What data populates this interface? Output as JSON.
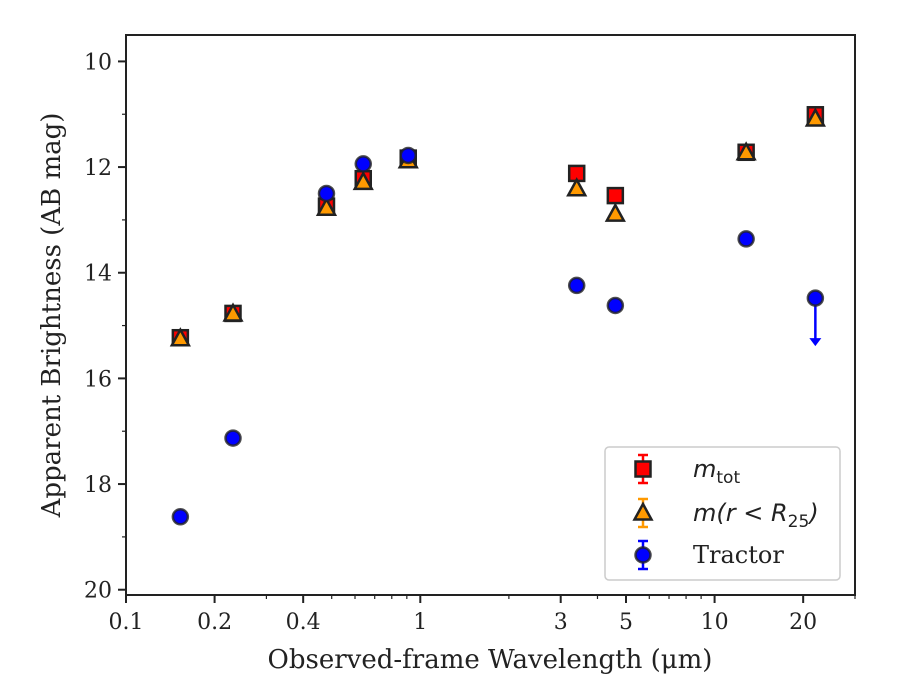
{
  "chart_data": {
    "type": "scatter",
    "title": "",
    "xlabel": "Observed-frame Wavelength (μm)",
    "ylabel": "Apparent Brightness (AB mag)",
    "x_scale": "log",
    "xlim": [
      0.1,
      30
    ],
    "ylim": [
      20.1,
      9.5
    ],
    "y_inverted": true,
    "grid": false,
    "legend_position": "lower-right",
    "x_ticks": [
      0.1,
      0.2,
      0.4,
      1,
      3,
      5,
      10,
      20
    ],
    "x_tick_labels": [
      "0.1",
      "0.2",
      "0.4",
      "1",
      "3",
      "5",
      "10",
      "20"
    ],
    "y_ticks": [
      10,
      12,
      14,
      16,
      18,
      20
    ],
    "y_tick_labels": [
      "10",
      "12",
      "14",
      "16",
      "18",
      "20"
    ],
    "legend": [
      {
        "base": "m",
        "sub": "tot",
        "marker": "square",
        "color": "#ff0000"
      },
      {
        "base": "m",
        "inner": "(r < R",
        "sub": "25",
        "post": ")",
        "marker": "triangle",
        "color": "#ff9900"
      },
      {
        "text": "Tractor",
        "marker": "circle",
        "color": "#0000ff"
      }
    ],
    "series": [
      {
        "marker": "square",
        "color": "#ff0000",
        "x": [
          0.153,
          0.231,
          0.48,
          0.64,
          0.91,
          3.4,
          4.6,
          12.8,
          22.0
        ],
        "y": [
          15.23,
          14.77,
          12.74,
          12.22,
          11.83,
          12.12,
          12.54,
          11.72,
          11.01
        ]
      },
      {
        "marker": "triangle",
        "color": "#ff9900",
        "x": [
          0.153,
          0.231,
          0.48,
          0.64,
          0.91,
          3.4,
          4.6,
          12.8,
          22.0
        ],
        "y": [
          15.25,
          14.78,
          12.78,
          12.29,
          11.88,
          12.41,
          12.89,
          11.73,
          11.09
        ]
      },
      {
        "marker": "circle",
        "color": "#0000ff",
        "x": [
          0.153,
          0.231,
          0.48,
          0.64,
          0.91,
          3.4,
          4.6,
          12.8,
          22.0
        ],
        "y": [
          18.62,
          17.13,
          12.5,
          11.94,
          11.78,
          14.24,
          14.62,
          13.36,
          14.48
        ],
        "upper_limit": [
          false,
          false,
          false,
          false,
          false,
          false,
          false,
          false,
          true
        ]
      }
    ]
  }
}
